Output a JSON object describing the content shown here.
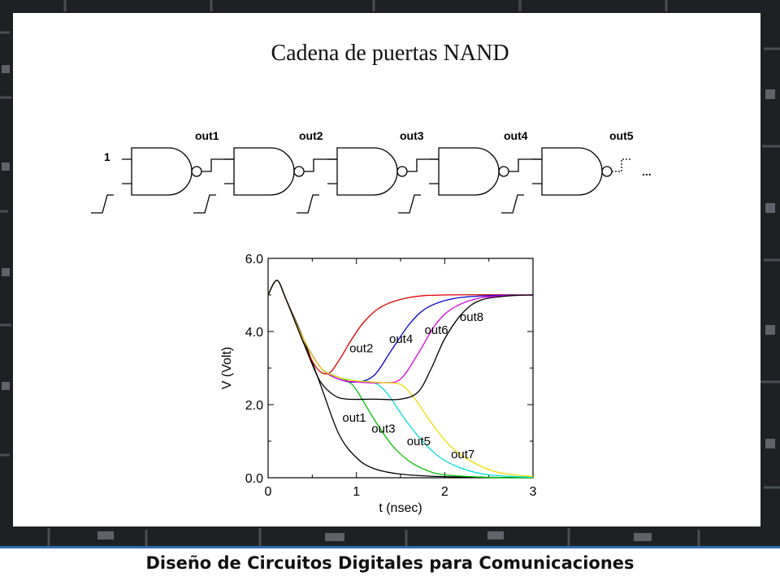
{
  "title": "Cadena de puertas NAND",
  "footer": "Diseño de Circuitos Digitales para Comunicaciones",
  "diagram": {
    "input_label": "1",
    "outputs": [
      "out1",
      "out2",
      "out3",
      "out4",
      "out5"
    ],
    "ellipsis": "..."
  },
  "colors": {
    "background": "#1e2024",
    "accent": "#2f6fb7"
  },
  "chart_data": {
    "type": "line",
    "xlabel": "t (nsec)",
    "ylabel": "V (Volt)",
    "xlim": [
      0,
      3
    ],
    "ylim": [
      0,
      6
    ],
    "xticks": [
      "0",
      "1",
      "2",
      "3"
    ],
    "yticks": [
      "0.0",
      "2.0",
      "4.0",
      "6.0"
    ],
    "grid": false,
    "series": [
      {
        "name": "out1",
        "color": "#000000",
        "points": [
          [
            0,
            5.0
          ],
          [
            0.1,
            5.4
          ],
          [
            0.2,
            4.9
          ],
          [
            0.4,
            3.8
          ],
          [
            0.6,
            2.5
          ],
          [
            0.8,
            1.2
          ],
          [
            1.0,
            0.55
          ],
          [
            1.2,
            0.25
          ],
          [
            1.5,
            0.1
          ],
          [
            2.0,
            0.03
          ],
          [
            3.0,
            0.0
          ]
        ]
      },
      {
        "name": "out2",
        "color": "#dd0000",
        "points": [
          [
            0,
            5.0
          ],
          [
            0.1,
            5.4
          ],
          [
            0.2,
            4.9
          ],
          [
            0.4,
            3.7
          ],
          [
            0.55,
            3.0
          ],
          [
            0.68,
            2.85
          ],
          [
            0.8,
            3.2
          ],
          [
            0.95,
            3.8
          ],
          [
            1.1,
            4.3
          ],
          [
            1.3,
            4.7
          ],
          [
            1.6,
            4.93
          ],
          [
            2.0,
            5.0
          ],
          [
            3.0,
            5.0
          ]
        ]
      },
      {
        "name": "out3",
        "color": "#00c000",
        "points": [
          [
            0,
            5.0
          ],
          [
            0.1,
            5.4
          ],
          [
            0.2,
            4.9
          ],
          [
            0.4,
            3.8
          ],
          [
            0.6,
            3.0
          ],
          [
            0.8,
            2.75
          ],
          [
            0.9,
            2.65
          ],
          [
            1.0,
            2.4
          ],
          [
            1.2,
            1.6
          ],
          [
            1.4,
            0.9
          ],
          [
            1.6,
            0.45
          ],
          [
            1.8,
            0.2
          ],
          [
            2.0,
            0.08
          ],
          [
            2.5,
            0.01
          ],
          [
            3.0,
            0.0
          ]
        ]
      },
      {
        "name": "out4",
        "color": "#0000cc",
        "points": [
          [
            0,
            5.0
          ],
          [
            0.1,
            5.4
          ],
          [
            0.2,
            4.9
          ],
          [
            0.4,
            3.8
          ],
          [
            0.6,
            3.0
          ],
          [
            0.8,
            2.7
          ],
          [
            1.0,
            2.62
          ],
          [
            1.2,
            2.8
          ],
          [
            1.4,
            3.5
          ],
          [
            1.6,
            4.2
          ],
          [
            1.8,
            4.65
          ],
          [
            2.1,
            4.9
          ],
          [
            2.5,
            4.98
          ],
          [
            3.0,
            5.0
          ]
        ]
      },
      {
        "name": "out5",
        "color": "#00dddd",
        "points": [
          [
            0,
            5.0
          ],
          [
            0.1,
            5.4
          ],
          [
            0.2,
            4.9
          ],
          [
            0.4,
            3.8
          ],
          [
            0.6,
            3.0
          ],
          [
            0.8,
            2.75
          ],
          [
            1.0,
            2.65
          ],
          [
            1.2,
            2.6
          ],
          [
            1.35,
            2.3
          ],
          [
            1.55,
            1.6
          ],
          [
            1.75,
            1.0
          ],
          [
            1.95,
            0.55
          ],
          [
            2.2,
            0.25
          ],
          [
            2.5,
            0.08
          ],
          [
            3.0,
            0.01
          ]
        ]
      },
      {
        "name": "out6",
        "color": "#dd00dd",
        "points": [
          [
            0,
            5.0
          ],
          [
            0.1,
            5.4
          ],
          [
            0.2,
            4.9
          ],
          [
            0.4,
            3.8
          ],
          [
            0.6,
            3.0
          ],
          [
            0.8,
            2.7
          ],
          [
            1.0,
            2.62
          ],
          [
            1.3,
            2.6
          ],
          [
            1.5,
            2.7
          ],
          [
            1.7,
            3.4
          ],
          [
            1.9,
            4.2
          ],
          [
            2.1,
            4.65
          ],
          [
            2.4,
            4.92
          ],
          [
            2.8,
            4.99
          ],
          [
            3.0,
            5.0
          ]
        ]
      },
      {
        "name": "out7",
        "color": "#eedd00",
        "points": [
          [
            0,
            5.0
          ],
          [
            0.1,
            5.4
          ],
          [
            0.2,
            4.9
          ],
          [
            0.4,
            3.8
          ],
          [
            0.6,
            3.0
          ],
          [
            0.8,
            2.75
          ],
          [
            1.0,
            2.65
          ],
          [
            1.3,
            2.6
          ],
          [
            1.5,
            2.55
          ],
          [
            1.65,
            2.2
          ],
          [
            1.85,
            1.5
          ],
          [
            2.05,
            0.9
          ],
          [
            2.3,
            0.45
          ],
          [
            2.6,
            0.15
          ],
          [
            3.0,
            0.03
          ]
        ]
      },
      {
        "name": "out8",
        "color": "#000000",
        "points": [
          [
            0,
            5.0
          ],
          [
            0.1,
            5.4
          ],
          [
            0.2,
            4.9
          ],
          [
            0.35,
            4.0
          ],
          [
            0.5,
            3.1
          ],
          [
            0.6,
            2.6
          ],
          [
            0.75,
            2.25
          ],
          [
            0.9,
            2.15
          ],
          [
            1.2,
            2.15
          ],
          [
            1.5,
            2.15
          ],
          [
            1.7,
            2.35
          ],
          [
            1.85,
            3.0
          ],
          [
            2.0,
            3.8
          ],
          [
            2.2,
            4.5
          ],
          [
            2.4,
            4.85
          ],
          [
            2.7,
            4.97
          ],
          [
            3.0,
            5.0
          ]
        ]
      }
    ],
    "annotations": [
      {
        "text": "out1",
        "x": 0.97,
        "y": 1.65
      },
      {
        "text": "out2",
        "x": 1.05,
        "y": 3.55
      },
      {
        "text": "out3",
        "x": 1.3,
        "y": 1.35
      },
      {
        "text": "out4",
        "x": 1.5,
        "y": 3.8
      },
      {
        "text": "out5",
        "x": 1.7,
        "y": 1.0
      },
      {
        "text": "out6",
        "x": 1.9,
        "y": 4.05
      },
      {
        "text": "out7",
        "x": 2.2,
        "y": 0.65
      },
      {
        "text": "out8",
        "x": 2.3,
        "y": 4.4
      }
    ]
  }
}
